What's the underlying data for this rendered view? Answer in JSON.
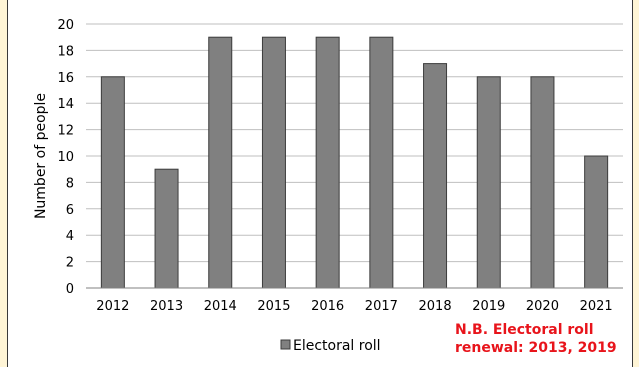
{
  "chart_data": {
    "type": "bar",
    "title": "",
    "xlabel": "",
    "ylabel": "Number of people",
    "categories": [
      "2012",
      "2013",
      "2014",
      "2015",
      "2016",
      "2017",
      "2018",
      "2019",
      "2020",
      "2021"
    ],
    "series": [
      {
        "name": "Electoral roll",
        "values": [
          16,
          9,
          19,
          19,
          19,
          19,
          17,
          16,
          16,
          10
        ]
      }
    ],
    "ylim": [
      0,
      20
    ],
    "yticks": [
      "0",
      "2",
      "4",
      "6",
      "8",
      "10",
      "12",
      "14",
      "16",
      "18",
      "20"
    ],
    "grid": true,
    "legend_position": "bottom",
    "colors": {
      "bar": "#808080",
      "bar_stroke": "#3c3c3c",
      "grid": "#bfbfbf",
      "note": "#e8141b"
    }
  },
  "annotation": {
    "line1": "N.B. Electoral roll",
    "line2": "renewal: 2013, 2019"
  }
}
